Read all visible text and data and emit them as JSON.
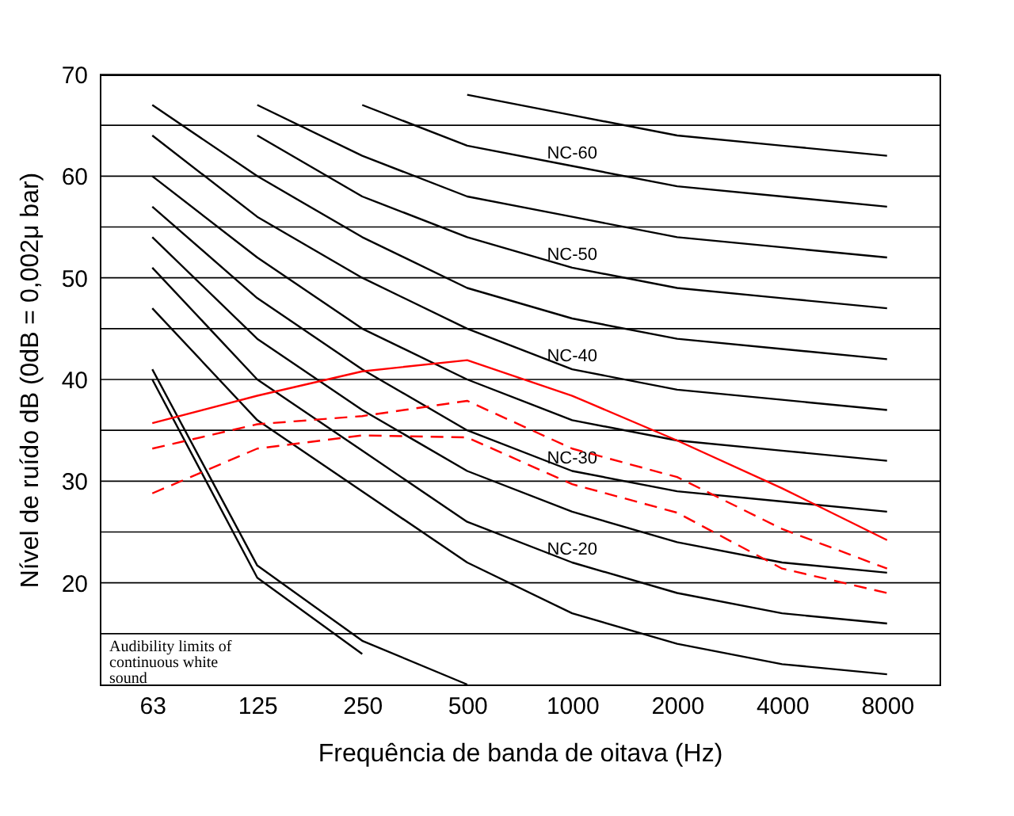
{
  "chart_data": {
    "type": "line",
    "xlabel": "Frequência de banda de oitava (Hz)",
    "ylabel": "Nível de ruído dB (0dB = 0,002μ bar)",
    "categories": [
      "63",
      "125",
      "250",
      "500",
      "1000",
      "2000",
      "4000",
      "8000"
    ],
    "ylim": [
      10,
      70
    ],
    "yticks": [
      {
        "value": 15,
        "label": null
      },
      20,
      {
        "value": 25,
        "label": null
      },
      30,
      {
        "value": 35,
        "label": null
      },
      40,
      {
        "value": 45,
        "label": null
      },
      50,
      {
        "value": 55,
        "label": null
      },
      60,
      {
        "value": 65,
        "label": null
      },
      70
    ],
    "grid": "y",
    "legend": false,
    "marker": "none",
    "series": [
      {
        "color": "#000000",
        "line_style": "solid",
        "values": [
          47,
          36,
          29,
          22,
          17,
          14,
          12,
          11
        ]
      },
      {
        "name": "NC-20",
        "color": "#000000",
        "line_style": "solid",
        "values": [
          51,
          40,
          33,
          26,
          22,
          19,
          17,
          16
        ]
      },
      {
        "color": "#000000",
        "line_style": "solid",
        "values": [
          54,
          44,
          37,
          31,
          27,
          24,
          22,
          21
        ]
      },
      {
        "name": "NC-30",
        "color": "#000000",
        "line_style": "solid",
        "values": [
          57,
          48,
          41,
          35,
          31,
          29,
          28,
          27
        ]
      },
      {
        "color": "#000000",
        "line_style": "solid",
        "values": [
          60,
          52,
          45,
          40,
          36,
          34,
          33,
          32
        ]
      },
      {
        "name": "NC-40",
        "color": "#000000",
        "line_style": "solid",
        "values": [
          64,
          56,
          50,
          45,
          41,
          39,
          38,
          37
        ]
      },
      {
        "color": "#000000",
        "line_style": "solid",
        "values": [
          67,
          60,
          54,
          49,
          46,
          44,
          43,
          42
        ]
      },
      {
        "name": "NC-50",
        "color": "#000000",
        "line_style": "solid",
        "values": [
          null,
          64,
          58,
          54,
          51,
          49,
          48,
          47
        ]
      },
      {
        "color": "#000000",
        "line_style": "solid",
        "values": [
          null,
          67,
          62,
          58,
          56,
          54,
          53,
          52
        ]
      },
      {
        "name": "NC-60",
        "color": "#000000",
        "line_style": "solid",
        "values": [
          null,
          null,
          67,
          63,
          61,
          59,
          58,
          57
        ]
      },
      {
        "color": "#000000",
        "line_style": "solid",
        "values": [
          null,
          null,
          null,
          68,
          66,
          64,
          63,
          62
        ]
      },
      {
        "color": "#000000",
        "line_style": "solid",
        "values": [
          41,
          21.7,
          14.3,
          10,
          null,
          null,
          null,
          null
        ]
      },
      {
        "color": "#000000",
        "line_style": "solid",
        "values": [
          40,
          20.5,
          13,
          null,
          null,
          null,
          null,
          null
        ]
      },
      {
        "color": "#ff0000",
        "line_style": "solid",
        "values": [
          35.7,
          38.4,
          40.8,
          41.9,
          38.4,
          34,
          29.3,
          24.2
        ]
      },
      {
        "color": "#ff0000",
        "line_style": "dashed",
        "values": [
          33.2,
          35.6,
          36.4,
          37.9,
          33.2,
          30.4,
          25.3,
          21.4
        ]
      },
      {
        "color": "#ff0000",
        "line_style": "dashed",
        "values": [
          28.8,
          33.2,
          34.5,
          34.3,
          29.7,
          26.9,
          21.4,
          19
        ]
      }
    ],
    "annotations": [
      "Audibility limits of continuous white sound"
    ]
  }
}
